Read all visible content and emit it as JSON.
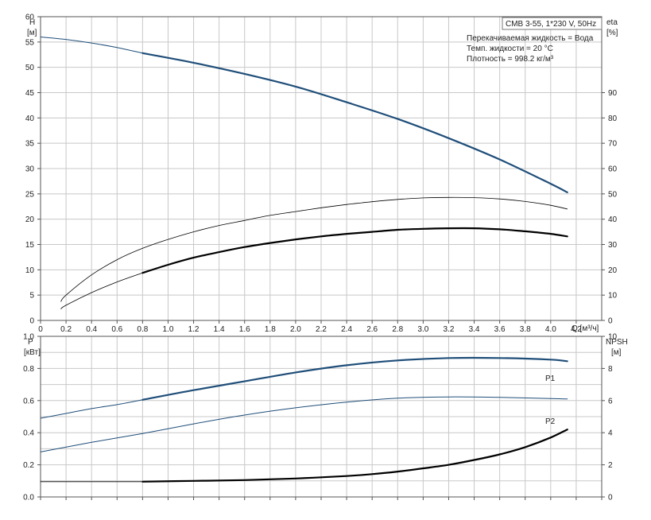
{
  "colors": {
    "dark_blue": "#1f4e79",
    "black": "#000000",
    "grid": "#c8c8c8"
  },
  "chart_data": [
    {
      "type": "line",
      "title": "CMB 3-55, 1*230 V, 50Hz",
      "notes": [
        "Перекачиваемая жидкость = Вода",
        "Темп. жидкости = 20 °C",
        "Плотность = 998.2 кг/м³"
      ],
      "xlabel": "Q [м³/ч]",
      "ylabel_left": [
        "H",
        "[м]"
      ],
      "ylabel_right": [
        "eta",
        "[%]"
      ],
      "xlim": [
        0,
        4.4
      ],
      "ylim_left": [
        0,
        60
      ],
      "ylim_right": [
        0,
        90
      ],
      "x_ticks": [
        "0",
        "0.2",
        "0.4",
        "0.6",
        "0.8",
        "1.0",
        "1.2",
        "1.4",
        "1.6",
        "1.8",
        "2.0",
        "2.2",
        "2.4",
        "2.6",
        "2.8",
        "3.0",
        "3.2",
        "3.4",
        "3.6",
        "3.8",
        "4.0",
        "4.2"
      ],
      "y_ticks_left": [
        "0",
        "5",
        "10",
        "15",
        "20",
        "25",
        "30",
        "35",
        "40",
        "45",
        "50",
        "55",
        "60"
      ],
      "y_ticks_right": [
        "0",
        "10",
        "20",
        "30",
        "40",
        "50",
        "60",
        "70",
        "80",
        "90"
      ],
      "grid": true,
      "series": [
        {
          "axis": "left",
          "style": "thin-blue",
          "x": [
            0,
            0.2,
            0.4,
            0.6,
            0.8
          ],
          "y": [
            56.0,
            55.5,
            54.8,
            53.9,
            52.8
          ]
        },
        {
          "axis": "left",
          "style": "thick-blue",
          "x": [
            0.8,
            1.2,
            1.6,
            2.0,
            2.4,
            2.8,
            3.2,
            3.6,
            4.0,
            4.13
          ],
          "y": [
            52.8,
            50.9,
            48.7,
            46.2,
            43.1,
            39.8,
            36.0,
            31.8,
            27.0,
            25.3
          ]
        },
        {
          "axis": "right",
          "style": "thin-black",
          "x": [
            0.16,
            0.2,
            0.4,
            0.6,
            0.8,
            1.0,
            1.2,
            1.4,
            1.6,
            1.8,
            2.0,
            2.2,
            2.4,
            2.6,
            2.8,
            3.0,
            3.2,
            3.4,
            3.6,
            3.8,
            4.0,
            4.13
          ],
          "y": [
            7.5,
            10,
            18,
            24,
            28.5,
            32,
            35,
            37.5,
            39.5,
            41.5,
            43,
            44.5,
            45.8,
            46.9,
            47.8,
            48.4,
            48.6,
            48.5,
            48,
            47,
            45.5,
            44
          ]
        },
        {
          "axis": "left",
          "style": "thin-black",
          "x": [
            0.16,
            0.2,
            0.4,
            0.6,
            0.8
          ],
          "y": [
            2.3,
            3.0,
            5.5,
            7.6,
            9.4
          ]
        },
        {
          "axis": "left",
          "style": "thick-black",
          "x": [
            0.8,
            1.0,
            1.2,
            1.4,
            1.6,
            1.8,
            2.0,
            2.2,
            2.4,
            2.6,
            2.8,
            3.0,
            3.2,
            3.4,
            3.6,
            3.8,
            4.0,
            4.13
          ],
          "y": [
            9.4,
            11.0,
            12.4,
            13.5,
            14.5,
            15.3,
            16.0,
            16.6,
            17.1,
            17.5,
            17.9,
            18.1,
            18.2,
            18.2,
            18.0,
            17.6,
            17.1,
            16.6
          ]
        }
      ]
    },
    {
      "type": "line",
      "ylabel_left": [
        "P",
        "[кВт]"
      ],
      "ylabel_right": [
        "NPSH",
        "[м]"
      ],
      "xlim": [
        0,
        4.4
      ],
      "ylim_left": [
        0,
        1.0
      ],
      "ylim_right": [
        0,
        10
      ],
      "y_ticks_left": [
        "0.0",
        "0.2",
        "0.4",
        "0.6",
        "0.8",
        "1.0"
      ],
      "y_ticks_right": [
        "0",
        "2",
        "4",
        "6",
        "8",
        "10"
      ],
      "grid": true,
      "series_labels": [
        "P1",
        "P2"
      ],
      "series": [
        {
          "name": "P1",
          "axis": "left",
          "style": "thin-blue",
          "x": [
            0,
            0.2,
            0.4,
            0.6,
            0.8
          ],
          "y": [
            0.49,
            0.52,
            0.55,
            0.575,
            0.605
          ]
        },
        {
          "name": "P1",
          "axis": "left",
          "style": "thick-blue",
          "x": [
            0.8,
            1.2,
            1.6,
            2.0,
            2.4,
            2.8,
            3.2,
            3.6,
            4.0,
            4.13
          ],
          "y": [
            0.605,
            0.665,
            0.72,
            0.775,
            0.82,
            0.85,
            0.865,
            0.865,
            0.855,
            0.845
          ]
        },
        {
          "name": "P2",
          "axis": "left",
          "style": "thin-blue",
          "x": [
            0,
            0.4,
            0.8,
            1.2,
            1.6,
            2.0,
            2.4,
            2.8,
            3.2,
            3.6,
            4.0,
            4.13
          ],
          "y": [
            0.28,
            0.34,
            0.395,
            0.455,
            0.51,
            0.555,
            0.59,
            0.615,
            0.623,
            0.62,
            0.613,
            0.61
          ]
        },
        {
          "axis": "right",
          "style": "thin-black",
          "x": [
            0,
            0.4,
            0.8
          ],
          "y": [
            0.95,
            0.95,
            0.95
          ]
        },
        {
          "axis": "right",
          "style": "thick-black",
          "x": [
            0.8,
            1.2,
            1.6,
            2.0,
            2.4,
            2.6,
            2.8,
            3.0,
            3.2,
            3.4,
            3.6,
            3.8,
            4.0,
            4.13
          ],
          "y": [
            0.95,
            1.0,
            1.05,
            1.15,
            1.3,
            1.42,
            1.58,
            1.78,
            2.0,
            2.3,
            2.65,
            3.1,
            3.7,
            4.2
          ]
        }
      ]
    }
  ]
}
